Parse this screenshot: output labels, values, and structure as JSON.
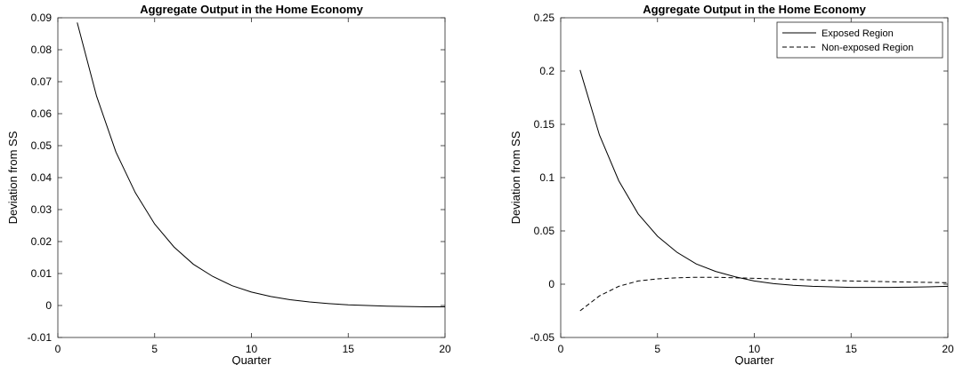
{
  "chart_data": [
    {
      "type": "line",
      "title": "Aggregate Output in the Home Economy",
      "xlabel": "Quarter",
      "ylabel": "Deviation from SS",
      "xlim": [
        0,
        20
      ],
      "ylim": [
        -0.01,
        0.09
      ],
      "xticks": [
        0,
        5,
        10,
        15,
        20
      ],
      "xtick_labels": [
        "0",
        "5",
        "10",
        "15",
        "20"
      ],
      "yticks": [
        -0.01,
        0,
        0.01,
        0.02,
        0.03,
        0.04,
        0.05,
        0.06,
        0.07,
        0.08,
        0.09
      ],
      "ytick_labels": [
        "-0.01",
        "0",
        "0.01",
        "0.02",
        "0.03",
        "0.04",
        "0.05",
        "0.06",
        "0.07",
        "0.08",
        "0.09"
      ],
      "grid": false,
      "legend": null,
      "x": [
        1,
        2,
        3,
        4,
        5,
        6,
        7,
        8,
        9,
        10,
        11,
        12,
        13,
        14,
        15,
        16,
        17,
        18,
        19,
        20
      ],
      "series": [
        {
          "style": "solid",
          "color": "#000000",
          "values": [
            0.0885,
            0.0655,
            0.048,
            0.0353,
            0.0255,
            0.0183,
            0.0129,
            0.0091,
            0.0062,
            0.0042,
            0.0028,
            0.0018,
            0.0011,
            0.0006,
            0.0002,
            0.0,
            -0.0002,
            -0.0003,
            -0.0004,
            -0.0004
          ]
        }
      ]
    },
    {
      "type": "line",
      "title": "Aggregate Output in the Home Economy",
      "xlabel": "Quarter",
      "ylabel": "Deviation from SS",
      "xlim": [
        0,
        20
      ],
      "ylim": [
        -0.05,
        0.25
      ],
      "xticks": [
        0,
        5,
        10,
        15,
        20
      ],
      "xtick_labels": [
        "0",
        "5",
        "10",
        "15",
        "20"
      ],
      "yticks": [
        -0.05,
        0,
        0.05,
        0.1,
        0.15,
        0.2,
        0.25
      ],
      "ytick_labels": [
        "-0.05",
        "0",
        "0.05",
        "0.1",
        "0.15",
        "0.2",
        "0.25"
      ],
      "grid": false,
      "legend": "top-right",
      "x": [
        1,
        2,
        3,
        4,
        5,
        6,
        7,
        8,
        9,
        10,
        11,
        12,
        13,
        14,
        15,
        16,
        17,
        18,
        19,
        20
      ],
      "series": [
        {
          "name": "Exposed Region",
          "style": "solid",
          "color": "#000000",
          "values": [
            0.201,
            0.14,
            0.097,
            0.066,
            0.045,
            0.03,
            0.019,
            0.012,
            0.007,
            0.003,
            0.0005,
            -0.001,
            -0.002,
            -0.0025,
            -0.003,
            -0.003,
            -0.003,
            -0.0028,
            -0.0025,
            -0.002
          ]
        },
        {
          "name": "Non-exposed Region",
          "style": "dashed",
          "color": "#000000",
          "values": [
            -0.025,
            -0.011,
            -0.002,
            0.003,
            0.005,
            0.006,
            0.0065,
            0.0065,
            0.006,
            0.0055,
            0.005,
            0.0045,
            0.004,
            0.0035,
            0.003,
            0.0027,
            0.0023,
            0.002,
            0.0017,
            0.0014
          ]
        }
      ]
    }
  ]
}
